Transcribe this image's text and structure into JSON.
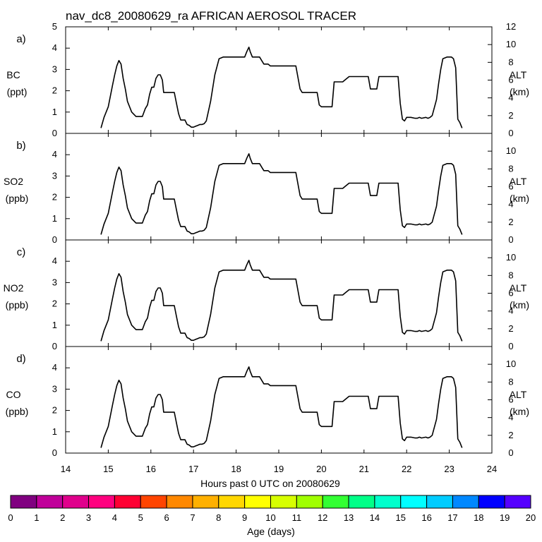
{
  "chart_data": {
    "type": "line",
    "title": "nav_dc8_20080629_ra AFRICAN AEROSOL TRACER",
    "xlabel": "Hours past 0 UTC on 20080629",
    "xlim": [
      14,
      24
    ],
    "x_ticks": [
      "14",
      "15",
      "16",
      "17",
      "18",
      "19",
      "20",
      "21",
      "22",
      "23",
      "24"
    ],
    "right_axis": {
      "name": "ALT",
      "unit": "(km)",
      "ylim": [
        0,
        12
      ]
    },
    "panels": [
      {
        "letter": "a)",
        "name": "BC",
        "unit": "(ppt)",
        "ylim": [
          0,
          5
        ],
        "left_ticks": [
          "0",
          "1",
          "2",
          "3",
          "4",
          "5"
        ],
        "right_ticks": [
          "0",
          "2",
          "4",
          "6",
          "8",
          "10",
          "12"
        ]
      },
      {
        "letter": "b)",
        "name": "SO2",
        "unit": "(ppb)",
        "ylim": [
          0,
          5
        ],
        "left_ticks": [
          "0",
          "1",
          "2",
          "3",
          "4"
        ],
        "right_ticks": [
          "0",
          "2",
          "4",
          "6",
          "8",
          "10"
        ]
      },
      {
        "letter": "c)",
        "name": "NO2",
        "unit": "(ppb)",
        "ylim": [
          0,
          5
        ],
        "left_ticks": [
          "0",
          "1",
          "2",
          "3",
          "4"
        ],
        "right_ticks": [
          "0",
          "2",
          "4",
          "6",
          "8",
          "10"
        ]
      },
      {
        "letter": "d)",
        "name": "CO",
        "unit": "(ppb)",
        "ylim": [
          0,
          5
        ],
        "left_ticks": [
          "0",
          "1",
          "2",
          "3",
          "4"
        ],
        "right_ticks": [
          "0",
          "2",
          "4",
          "6",
          "8",
          "10"
        ]
      }
    ],
    "altitude_series": {
      "name": "ALT (km)",
      "x": [
        14.83,
        14.9,
        15.0,
        15.1,
        15.15,
        15.2,
        15.25,
        15.3,
        15.35,
        15.4,
        15.45,
        15.55,
        15.65,
        15.75,
        15.8,
        15.87,
        15.92,
        15.97,
        16.02,
        16.07,
        16.12,
        16.17,
        16.22,
        16.27,
        16.3,
        16.35,
        16.55,
        16.6,
        16.65,
        16.7,
        16.8,
        16.85,
        16.9,
        16.95,
        17.0,
        17.05,
        17.1,
        17.15,
        17.2,
        17.25,
        17.3,
        17.4,
        17.5,
        17.6,
        17.7,
        17.8,
        18.1,
        18.2,
        18.25,
        18.3,
        18.33,
        18.38,
        18.42,
        18.45,
        18.55,
        18.6,
        18.65,
        18.75,
        18.8,
        19.0,
        19.2,
        19.4,
        19.5,
        19.55,
        19.6,
        19.9,
        19.95,
        20.0,
        20.25,
        20.3,
        20.5,
        20.55,
        20.65,
        20.7,
        20.8,
        21.1,
        21.15,
        21.3,
        21.35,
        21.4,
        21.75,
        21.8,
        21.85,
        21.9,
        21.95,
        22.0,
        22.1,
        22.2,
        22.25,
        22.3,
        22.35,
        22.45,
        22.5,
        22.55,
        22.6,
        22.7,
        22.75,
        22.8,
        22.85,
        22.95,
        23.05,
        23.1,
        23.15,
        23.2,
        23.25,
        23.3
      ],
      "values": [
        0.6,
        1.8,
        3.0,
        5.4,
        6.6,
        7.6,
        8.2,
        7.8,
        6.2,
        5.0,
        3.6,
        2.4,
        1.9,
        1.9,
        1.9,
        2.8,
        3.2,
        4.4,
        5.2,
        5.2,
        6.2,
        6.6,
        6.6,
        6.0,
        4.6,
        4.6,
        4.6,
        3.4,
        2.2,
        1.5,
        1.5,
        1.0,
        0.9,
        0.7,
        0.7,
        0.8,
        0.9,
        1.0,
        1.0,
        1.1,
        1.4,
        3.6,
        6.6,
        8.4,
        8.6,
        8.6,
        8.6,
        8.6,
        9.2,
        9.7,
        9.2,
        8.6,
        8.6,
        8.6,
        8.6,
        8.2,
        7.8,
        7.8,
        7.6,
        7.6,
        7.6,
        7.6,
        5.0,
        4.6,
        4.6,
        4.6,
        3.2,
        3.0,
        3.0,
        5.8,
        5.8,
        6.0,
        6.4,
        6.4,
        6.4,
        6.4,
        5.0,
        5.0,
        6.4,
        6.4,
        6.4,
        6.4,
        3.4,
        1.6,
        1.4,
        1.8,
        1.8,
        1.7,
        1.7,
        1.8,
        1.7,
        1.8,
        1.7,
        1.8,
        2.0,
        3.8,
        5.6,
        7.2,
        8.4,
        8.6,
        8.6,
        8.4,
        7.4,
        1.6,
        1.2,
        0.6
      ]
    },
    "colorbar": {
      "title": "Age (days)",
      "tick_labels": [
        "0",
        "1",
        "2",
        "3",
        "4",
        "5",
        "6",
        "7",
        "8",
        "9",
        "10",
        "11",
        "12",
        "13",
        "14",
        "15",
        "16",
        "17",
        "18",
        "19",
        "20"
      ],
      "colors": [
        "#800080",
        "#c0009a",
        "#e0008c",
        "#ff007f",
        "#ff0033",
        "#ff4400",
        "#ff8800",
        "#ffb000",
        "#ffd700",
        "#ffff00",
        "#d7ff00",
        "#a0ff00",
        "#33ff33",
        "#00ff88",
        "#00ffcc",
        "#00ffff",
        "#00ccff",
        "#0088ff",
        "#0000ff",
        "#5500ff"
      ]
    }
  }
}
